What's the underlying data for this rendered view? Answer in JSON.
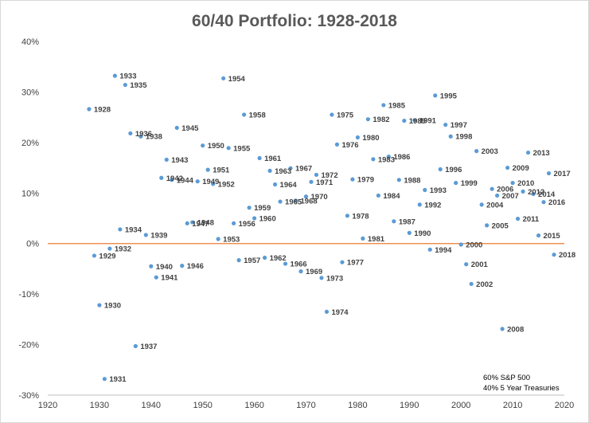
{
  "chart_data": {
    "type": "scatter",
    "title": "60/40 Portfolio: 1928-2018",
    "xlabel": "",
    "ylabel": "",
    "xlim": [
      1920,
      2020
    ],
    "ylim": [
      -30,
      40
    ],
    "x_ticks": [
      1920,
      1930,
      1940,
      1950,
      1960,
      1970,
      1980,
      1990,
      2000,
      2010,
      2020
    ],
    "y_ticks": [
      -30,
      -20,
      -10,
      0,
      10,
      20,
      30,
      40
    ],
    "y_tick_format": "percent",
    "grid": false,
    "reference_line_y": 0,
    "annotation_lines": [
      "60% S&P 500",
      "40% 5 Year Treasuries"
    ],
    "point_color": "#5b9bd5",
    "zero_line_color": "#ed7d31",
    "series": [
      {
        "name": "60/40 Portfolio",
        "points": [
          {
            "x": 1928,
            "y": 26.6,
            "label": "1928"
          },
          {
            "x": 1929,
            "y": -2.4,
            "label": "1929"
          },
          {
            "x": 1930,
            "y": -12.2,
            "label": "1930"
          },
          {
            "x": 1931,
            "y": -26.8,
            "label": "1931"
          },
          {
            "x": 1932,
            "y": -1.0,
            "label": "1932"
          },
          {
            "x": 1933,
            "y": 33.2,
            "label": "1933"
          },
          {
            "x": 1934,
            "y": 2.8,
            "label": "1934"
          },
          {
            "x": 1935,
            "y": 31.4,
            "label": "1935"
          },
          {
            "x": 1936,
            "y": 21.8,
            "label": "1936"
          },
          {
            "x": 1937,
            "y": -20.3,
            "label": "1937"
          },
          {
            "x": 1938,
            "y": 21.2,
            "label": "1938"
          },
          {
            "x": 1939,
            "y": 1.7,
            "label": "1939"
          },
          {
            "x": 1940,
            "y": -4.5,
            "label": "1940"
          },
          {
            "x": 1941,
            "y": -6.7,
            "label": "1941"
          },
          {
            "x": 1942,
            "y": 13.0,
            "label": "1942"
          },
          {
            "x": 1943,
            "y": 16.6,
            "label": "1943"
          },
          {
            "x": 1944,
            "y": 12.6,
            "label": "1944"
          },
          {
            "x": 1945,
            "y": 22.9,
            "label": "1945"
          },
          {
            "x": 1946,
            "y": -4.4,
            "label": "1946"
          },
          {
            "x": 1947,
            "y": 4.0,
            "label": "1947"
          },
          {
            "x": 1948,
            "y": 4.2,
            "label": "1948"
          },
          {
            "x": 1949,
            "y": 12.3,
            "label": "1949"
          },
          {
            "x": 1950,
            "y": 19.4,
            "label": "1950"
          },
          {
            "x": 1951,
            "y": 14.6,
            "label": "1951"
          },
          {
            "x": 1952,
            "y": 11.8,
            "label": "1952"
          },
          {
            "x": 1953,
            "y": 0.9,
            "label": "1953"
          },
          {
            "x": 1954,
            "y": 32.7,
            "label": "1954"
          },
          {
            "x": 1955,
            "y": 18.9,
            "label": "1955"
          },
          {
            "x": 1956,
            "y": 4.0,
            "label": "1956"
          },
          {
            "x": 1957,
            "y": -3.3,
            "label": "1957"
          },
          {
            "x": 1958,
            "y": 25.5,
            "label": "1958"
          },
          {
            "x": 1959,
            "y": 7.1,
            "label": "1959"
          },
          {
            "x": 1960,
            "y": 5.0,
            "label": "1960"
          },
          {
            "x": 1961,
            "y": 16.9,
            "label": "1961"
          },
          {
            "x": 1962,
            "y": -2.8,
            "label": "1962"
          },
          {
            "x": 1963,
            "y": 14.4,
            "label": "1963"
          },
          {
            "x": 1964,
            "y": 11.7,
            "label": "1964"
          },
          {
            "x": 1965,
            "y": 8.3,
            "label": "1965"
          },
          {
            "x": 1966,
            "y": -4.0,
            "label": "1966"
          },
          {
            "x": 1967,
            "y": 14.9,
            "label": "1967"
          },
          {
            "x": 1968,
            "y": 8.5,
            "label": "1968"
          },
          {
            "x": 1969,
            "y": -5.5,
            "label": "1969"
          },
          {
            "x": 1970,
            "y": 9.3,
            "label": "1970"
          },
          {
            "x": 1971,
            "y": 12.2,
            "label": "1971"
          },
          {
            "x": 1972,
            "y": 13.6,
            "label": "1972"
          },
          {
            "x": 1973,
            "y": -6.8,
            "label": "1973"
          },
          {
            "x": 1974,
            "y": -13.5,
            "label": "1974"
          },
          {
            "x": 1975,
            "y": 25.5,
            "label": "1975"
          },
          {
            "x": 1976,
            "y": 19.6,
            "label": "1976"
          },
          {
            "x": 1977,
            "y": -3.7,
            "label": "1977"
          },
          {
            "x": 1978,
            "y": 5.5,
            "label": "1978"
          },
          {
            "x": 1979,
            "y": 12.7,
            "label": "1979"
          },
          {
            "x": 1980,
            "y": 21.0,
            "label": "1980"
          },
          {
            "x": 1981,
            "y": 1.0,
            "label": "1981"
          },
          {
            "x": 1982,
            "y": 24.6,
            "label": "1982"
          },
          {
            "x": 1983,
            "y": 16.7,
            "label": "1983"
          },
          {
            "x": 1984,
            "y": 9.5,
            "label": "1984"
          },
          {
            "x": 1985,
            "y": 27.4,
            "label": "1985"
          },
          {
            "x": 1986,
            "y": 17.2,
            "label": "1986"
          },
          {
            "x": 1987,
            "y": 4.4,
            "label": "1987"
          },
          {
            "x": 1988,
            "y": 12.6,
            "label": "1988"
          },
          {
            "x": 1989,
            "y": 24.3,
            "label": "1989"
          },
          {
            "x": 1990,
            "y": 2.1,
            "label": "1990"
          },
          {
            "x": 1991,
            "y": 24.4,
            "label": "1991"
          },
          {
            "x": 1992,
            "y": 7.7,
            "label": "1992"
          },
          {
            "x": 1993,
            "y": 10.6,
            "label": "1993"
          },
          {
            "x": 1994,
            "y": -1.2,
            "label": "1994"
          },
          {
            "x": 1995,
            "y": 29.3,
            "label": "1995"
          },
          {
            "x": 1996,
            "y": 14.7,
            "label": "1996"
          },
          {
            "x": 1997,
            "y": 23.5,
            "label": "1997"
          },
          {
            "x": 1998,
            "y": 21.2,
            "label": "1998"
          },
          {
            "x": 1999,
            "y": 12.0,
            "label": "1999"
          },
          {
            "x": 2000,
            "y": -0.2,
            "label": "2000"
          },
          {
            "x": 2001,
            "y": -4.1,
            "label": "2001"
          },
          {
            "x": 2002,
            "y": -8.0,
            "label": "2002"
          },
          {
            "x": 2003,
            "y": 18.3,
            "label": "2003"
          },
          {
            "x": 2004,
            "y": 7.7,
            "label": "2004"
          },
          {
            "x": 2005,
            "y": 3.6,
            "label": "2005"
          },
          {
            "x": 2006,
            "y": 10.8,
            "label": "2006"
          },
          {
            "x": 2007,
            "y": 9.5,
            "label": "2007"
          },
          {
            "x": 2008,
            "y": -16.9,
            "label": "2008"
          },
          {
            "x": 2009,
            "y": 15.0,
            "label": "2009"
          },
          {
            "x": 2010,
            "y": 12.0,
            "label": "2010"
          },
          {
            "x": 2011,
            "y": 4.9,
            "label": "2011"
          },
          {
            "x": 2012,
            "y": 10.3,
            "label": "2012"
          },
          {
            "x": 2013,
            "y": 18.0,
            "label": "2013"
          },
          {
            "x": 2014,
            "y": 9.8,
            "label": "2014"
          },
          {
            "x": 2015,
            "y": 1.6,
            "label": "2015"
          },
          {
            "x": 2016,
            "y": 8.2,
            "label": "2016"
          },
          {
            "x": 2017,
            "y": 13.9,
            "label": "2017"
          },
          {
            "x": 2018,
            "y": -2.2,
            "label": "2018"
          }
        ]
      }
    ]
  }
}
